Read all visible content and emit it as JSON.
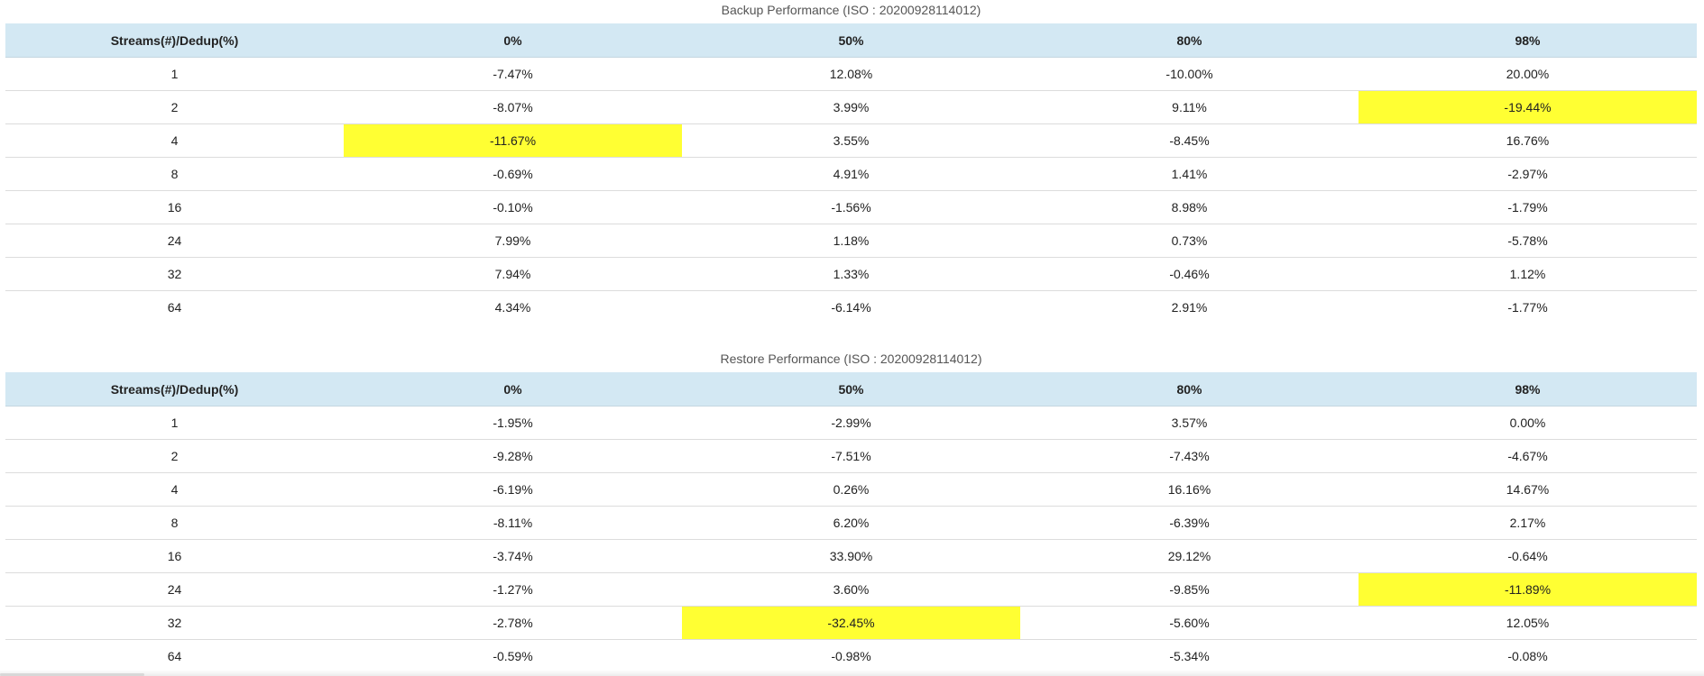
{
  "colors": {
    "header_bg": "#d3e8f3",
    "highlight": "#ffff33"
  },
  "columns": [
    "Streams(#)/Dedup(%)",
    "0%",
    "50%",
    "80%",
    "98%"
  ],
  "backup": {
    "title": "Backup Performance (ISO : 20200928114012)",
    "rows": [
      {
        "streams": "1",
        "values": [
          "-7.47%",
          "12.08%",
          "-10.00%",
          "20.00%"
        ],
        "highlight": []
      },
      {
        "streams": "2",
        "values": [
          "-8.07%",
          "3.99%",
          "9.11%",
          "-19.44%"
        ],
        "highlight": [
          3
        ]
      },
      {
        "streams": "4",
        "values": [
          "-11.67%",
          "3.55%",
          "-8.45%",
          "16.76%"
        ],
        "highlight": [
          0
        ]
      },
      {
        "streams": "8",
        "values": [
          "-0.69%",
          "4.91%",
          "1.41%",
          "-2.97%"
        ],
        "highlight": []
      },
      {
        "streams": "16",
        "values": [
          "-0.10%",
          "-1.56%",
          "8.98%",
          "-1.79%"
        ],
        "highlight": []
      },
      {
        "streams": "24",
        "values": [
          "7.99%",
          "1.18%",
          "0.73%",
          "-5.78%"
        ],
        "highlight": []
      },
      {
        "streams": "32",
        "values": [
          "7.94%",
          "1.33%",
          "-0.46%",
          "1.12%"
        ],
        "highlight": []
      },
      {
        "streams": "64",
        "values": [
          "4.34%",
          "-6.14%",
          "2.91%",
          "-1.77%"
        ],
        "highlight": []
      }
    ]
  },
  "restore": {
    "title": "Restore Performance (ISO : 20200928114012)",
    "rows": [
      {
        "streams": "1",
        "values": [
          "-1.95%",
          "-2.99%",
          "3.57%",
          "0.00%"
        ],
        "highlight": []
      },
      {
        "streams": "2",
        "values": [
          "-9.28%",
          "-7.51%",
          "-7.43%",
          "-4.67%"
        ],
        "highlight": []
      },
      {
        "streams": "4",
        "values": [
          "-6.19%",
          "0.26%",
          "16.16%",
          "14.67%"
        ],
        "highlight": []
      },
      {
        "streams": "8",
        "values": [
          "-8.11%",
          "6.20%",
          "-6.39%",
          "2.17%"
        ],
        "highlight": []
      },
      {
        "streams": "16",
        "values": [
          "-3.74%",
          "33.90%",
          "29.12%",
          "-0.64%"
        ],
        "highlight": []
      },
      {
        "streams": "24",
        "values": [
          "-1.27%",
          "3.60%",
          "-9.85%",
          "-11.89%"
        ],
        "highlight": [
          3
        ]
      },
      {
        "streams": "32",
        "values": [
          "-2.78%",
          "-32.45%",
          "-5.60%",
          "12.05%"
        ],
        "highlight": [
          1
        ]
      },
      {
        "streams": "64",
        "values": [
          "-0.59%",
          "-0.98%",
          "-5.34%",
          "-0.08%"
        ],
        "highlight": []
      }
    ]
  }
}
